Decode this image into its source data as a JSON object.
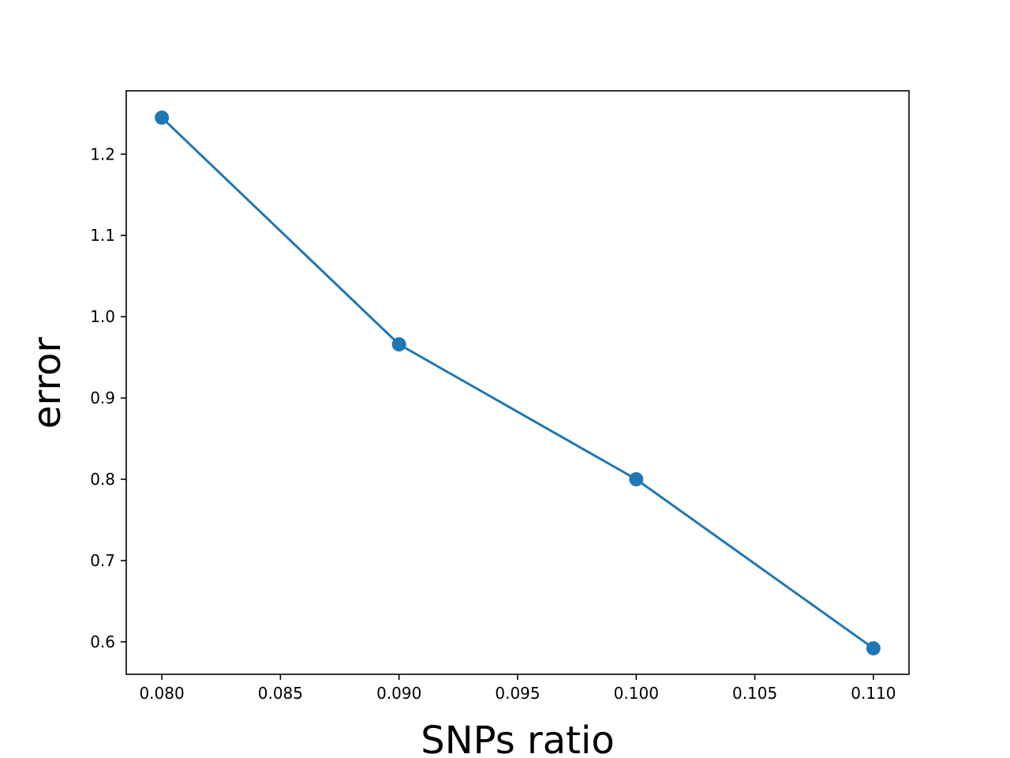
{
  "chart_data": {
    "type": "line",
    "title": "",
    "xlabel": "SNPs ratio",
    "ylabel": "error",
    "xlim": [
      0.0785,
      0.1115
    ],
    "ylim": [
      0.56,
      1.278
    ],
    "xticks": [
      "0.080",
      "0.085",
      "0.090",
      "0.095",
      "0.100",
      "0.105",
      "0.110"
    ],
    "xtick_values": [
      0.08,
      0.085,
      0.09,
      0.095,
      0.1,
      0.105,
      0.11
    ],
    "yticks": [
      "0.6",
      "0.7",
      "0.8",
      "0.9",
      "1.0",
      "1.1",
      "1.2"
    ],
    "ytick_values": [
      0.6,
      0.7,
      0.8,
      0.9,
      1.0,
      1.1,
      1.2
    ],
    "grid": false,
    "legend": "none",
    "series": [
      {
        "color": "#1f77b4",
        "marker": "circle",
        "x": [
          0.08,
          0.09,
          0.1,
          0.11
        ],
        "y": [
          1.245,
          0.966,
          0.8,
          0.592
        ]
      }
    ]
  }
}
